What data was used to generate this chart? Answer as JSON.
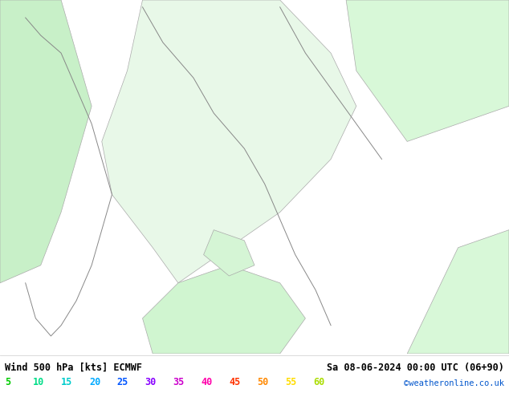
{
  "title_left": "Wind 500 hPa [kts] ECMWF",
  "title_right": "Sa 08-06-2024 00:00 UTC (06+90)",
  "credit": "©weatheronline.co.uk",
  "legend_values": [
    5,
    10,
    15,
    20,
    25,
    30,
    35,
    40,
    45,
    50,
    55,
    60
  ],
  "legend_colors": [
    "#00cc00",
    "#00dd88",
    "#00cccc",
    "#00aaff",
    "#0055ff",
    "#8800ff",
    "#cc00cc",
    "#ff00aa",
    "#ff3300",
    "#ff8800",
    "#ffdd00",
    "#aadd00"
  ],
  "background_color": "#ffffff",
  "map_bg_light": "#ccffcc",
  "map_bg_lighter": "#eeffee",
  "map_border": "#aaaaaa",
  "fig_width": 6.34,
  "fig_height": 4.9,
  "dpi": 100,
  "bottom_bar_color": "#f0f0f0",
  "bottom_text_color": "#000000",
  "credit_color": "#0055cc"
}
